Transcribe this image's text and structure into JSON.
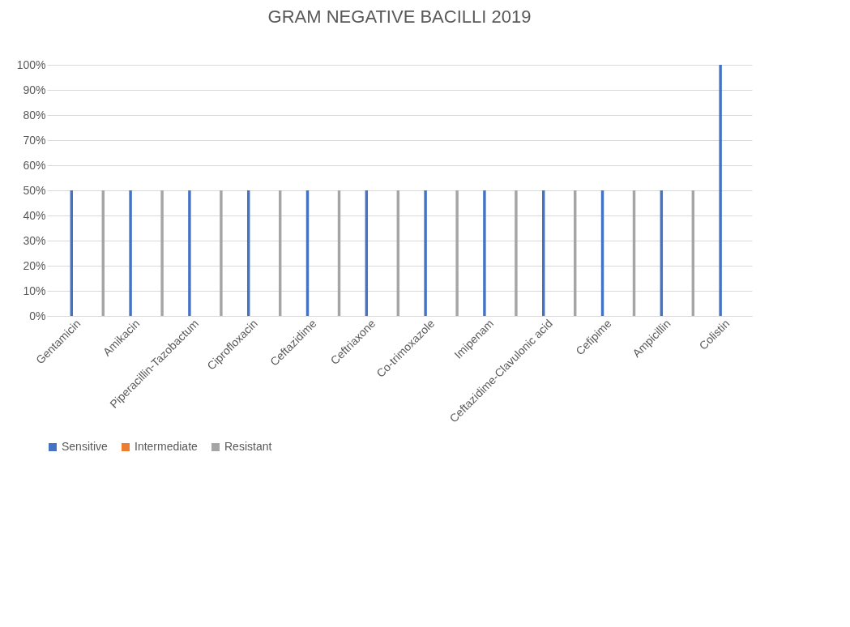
{
  "chart_data": {
    "type": "bar",
    "title": "GRAM NEGATIVE BACILLI 2019",
    "categories": [
      "Gentamicin",
      "Amikacin",
      "Piperacillin-Tazobactum",
      "Ciprofloxacin",
      "Ceftazidime",
      "Ceftriaxone",
      "Co-trimoxazole",
      "Imipenam",
      "Ceftazidime-Clavulonic acid",
      "Cefipime",
      "Ampicillin",
      "Colistin"
    ],
    "series": [
      {
        "name": "Sensitive",
        "color": "#4472c4",
        "values": [
          50,
          50,
          50,
          50,
          50,
          50,
          50,
          50,
          50,
          50,
          50,
          100
        ]
      },
      {
        "name": "Intermediate",
        "color": "#ed7d31",
        "values": [
          0,
          0,
          0,
          0,
          0,
          0,
          0,
          0,
          0,
          0,
          0,
          0
        ]
      },
      {
        "name": "Resistant",
        "color": "#a5a5a5",
        "values": [
          50,
          50,
          50,
          50,
          50,
          50,
          50,
          50,
          50,
          50,
          50,
          0
        ]
      }
    ],
    "ylim": [
      0,
      100
    ],
    "yticks": [
      {
        "value": 0,
        "label": "0%"
      },
      {
        "value": 10,
        "label": "10%"
      },
      {
        "value": 20,
        "label": "20%"
      },
      {
        "value": 30,
        "label": "30%"
      },
      {
        "value": 40,
        "label": "40%"
      },
      {
        "value": 50,
        "label": "50%"
      },
      {
        "value": 60,
        "label": "60%"
      },
      {
        "value": 70,
        "label": "70%"
      },
      {
        "value": 80,
        "label": "80%"
      },
      {
        "value": 90,
        "label": "90%"
      },
      {
        "value": 100,
        "label": "100%"
      }
    ],
    "grid": "y",
    "legend": "bottom"
  }
}
